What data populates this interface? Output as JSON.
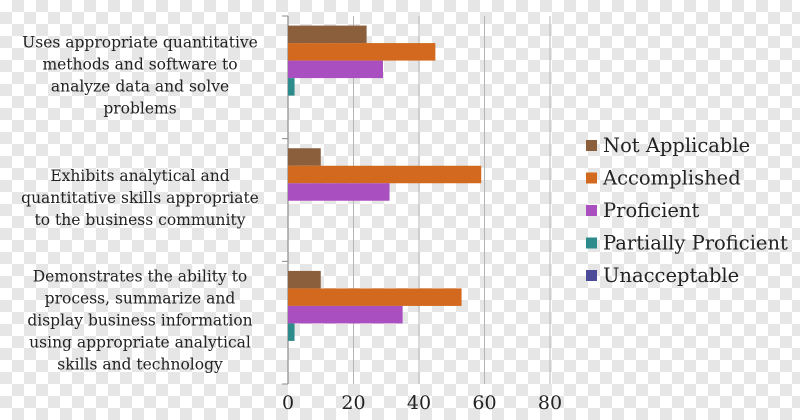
{
  "chart_data": {
    "type": "bar",
    "orientation": "horizontal",
    "categories": [
      "Uses appropriate quantitative methods and software to analyze data and solve problems",
      "Exhibits analytical and quantitative skills appropriate to the business community",
      "Demonstrates the ability to process, summarize and display business information using appropriate analytical skills and technology"
    ],
    "category_lines": [
      [
        "Uses appropriate quantitative",
        "methods and software to",
        "analyze data and solve",
        "problems"
      ],
      [
        "Exhibits analytical and",
        "quantitative skills appropriate",
        "to the business community"
      ],
      [
        "Demonstrates the ability to",
        "process, summarize and",
        "display business information",
        "using appropriate analytical",
        "skills and technology"
      ]
    ],
    "series": [
      {
        "name": "Not Applicable",
        "color": "#8B5E3C",
        "values": [
          24,
          10,
          10
        ]
      },
      {
        "name": "Accomplished",
        "color": "#D2691E",
        "values": [
          45,
          59,
          53
        ]
      },
      {
        "name": "Proficient",
        "color": "#A94FBF",
        "values": [
          29,
          31,
          35
        ]
      },
      {
        "name": "Partially Proficient",
        "color": "#2E8B8B",
        "values": [
          2,
          0,
          2
        ]
      },
      {
        "name": "Unacceptable",
        "color": "#4B4B9A",
        "values": [
          0,
          0,
          0
        ]
      }
    ],
    "xlim": [
      0,
      80
    ],
    "xticks": [
      "0",
      "20",
      "40",
      "60",
      "80"
    ],
    "grid": true,
    "legend": "right",
    "title": "",
    "xlabel": "",
    "ylabel": ""
  }
}
